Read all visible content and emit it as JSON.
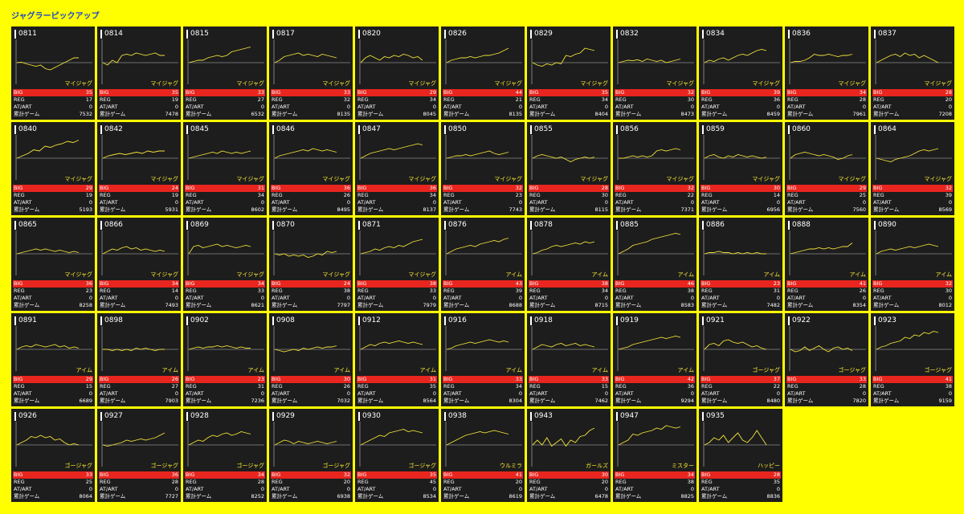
{
  "title": "ジャグラーピックアップ",
  "colors": {
    "page_background": "#ffff00",
    "title": "#1f46c8",
    "card_background": "#1d1d1d",
    "big_row": "#e8251f",
    "trend_line": "#f2e33a",
    "baseline": "#8a8a8a",
    "type_label": "#ffee33"
  },
  "stat_labels": {
    "big": "BIG",
    "reg": "REG",
    "at": "AT/ART",
    "total": "累計ゲーム"
  },
  "cards": [
    {
      "id": "0811",
      "type": "マイジャグ",
      "big": 35,
      "reg": 17,
      "at": 0,
      "total": 7532,
      "trend": [
        0,
        0.02,
        -0.05,
        -0.1,
        -0.15,
        -0.1,
        -0.25,
        -0.3,
        -0.2,
        -0.1,
        0,
        0.1,
        0.2,
        0.2
      ]
    },
    {
      "id": "0814",
      "type": "マイジャグ",
      "big": 35,
      "reg": 19,
      "at": 0,
      "total": 7478,
      "trend": [
        0,
        -0.1,
        0.1,
        0,
        0.3,
        0.35,
        0.3,
        0.4,
        0.35,
        0.3,
        0.35,
        0.4,
        0.3,
        0.3
      ]
    },
    {
      "id": "0815",
      "type": "マイジャグ",
      "big": 33,
      "reg": 27,
      "at": 0,
      "total": 6532,
      "trend": [
        0,
        0.05,
        0.1,
        0.1,
        0.2,
        0.25,
        0.3,
        0.25,
        0.3,
        0.45,
        0.5,
        0.55,
        0.6,
        0.65
      ]
    },
    {
      "id": "0817",
      "type": "マイジャグ",
      "big": 33,
      "reg": 32,
      "at": 0,
      "total": 8135,
      "trend": [
        0,
        0.1,
        0.25,
        0.3,
        0.35,
        0.4,
        0.3,
        0.35,
        0.3,
        0.25,
        0.35,
        0.3,
        0.25,
        0.2
      ]
    },
    {
      "id": "0820",
      "type": "マイジャグ",
      "big": 29,
      "reg": 34,
      "at": 0,
      "total": 8045,
      "trend": [
        0,
        0.2,
        0.3,
        0.2,
        0.1,
        0.25,
        0.2,
        0.3,
        0.25,
        0.35,
        0.3,
        0.2,
        0.25,
        0.1
      ]
    },
    {
      "id": "0826",
      "type": "マイジャグ",
      "big": 44,
      "reg": 21,
      "at": 0,
      "total": 8135,
      "trend": [
        0,
        0.1,
        0.15,
        0.2,
        0.2,
        0.25,
        0.2,
        0.25,
        0.3,
        0.3,
        0.35,
        0.4,
        0.5,
        0.6
      ]
    },
    {
      "id": "0829",
      "type": "マイジャグ",
      "big": 35,
      "reg": 34,
      "at": 0,
      "total": 8404,
      "trend": [
        0,
        -0.1,
        -0.15,
        -0.05,
        -0.1,
        0,
        -0.05,
        0.3,
        0.25,
        0.35,
        0.4,
        0.6,
        0.55,
        0.5
      ]
    },
    {
      "id": "0832",
      "type": "マイジャグ",
      "big": 32,
      "reg": 30,
      "at": 0,
      "total": 8473,
      "trend": [
        0,
        0.05,
        0.1,
        0.08,
        0.12,
        0.05,
        0.15,
        0.1,
        0.05,
        0.1,
        0,
        0.05,
        0.1,
        0.15
      ]
    },
    {
      "id": "0834",
      "type": "マイジャグ",
      "big": 39,
      "reg": 36,
      "at": 0,
      "total": 8459,
      "trend": [
        0,
        0.1,
        0.05,
        0.15,
        0.2,
        0.1,
        0.2,
        0.3,
        0.35,
        0.3,
        0.4,
        0.5,
        0.55,
        0.5
      ]
    },
    {
      "id": "0836",
      "type": "マイジャグ",
      "big": 34,
      "reg": 28,
      "at": 0,
      "total": 7961,
      "trend": [
        0,
        0.05,
        0.05,
        0.1,
        0.2,
        0.35,
        0.3,
        0.3,
        0.35,
        0.3,
        0.25,
        0.3,
        0.3,
        0.35
      ]
    },
    {
      "id": "0837",
      "type": "マイジャグ",
      "big": 28,
      "reg": 20,
      "at": 0,
      "total": 7208,
      "trend": [
        0,
        0.1,
        0.2,
        0.3,
        0.35,
        0.25,
        0.4,
        0.3,
        0.35,
        0.2,
        0.3,
        0.2,
        0.1,
        0
      ]
    },
    {
      "id": "0840",
      "type": "マイジャグ",
      "big": 29,
      "reg": 19,
      "at": 0,
      "total": 5193,
      "trend": [
        0,
        0.1,
        0.2,
        0.35,
        0.3,
        0.5,
        0.45,
        0.55,
        0.6,
        0.7,
        0.65,
        0.75
      ]
    },
    {
      "id": "0842",
      "type": "マイジャグ",
      "big": 24,
      "reg": 19,
      "at": 0,
      "total": 5931,
      "trend": [
        0,
        0.1,
        0.15,
        0.2,
        0.15,
        0.2,
        0.25,
        0.2,
        0.3,
        0.25,
        0.3,
        0.3
      ]
    },
    {
      "id": "0845",
      "type": "マイジャグ",
      "big": 31,
      "reg": 34,
      "at": 0,
      "total": 8602,
      "trend": [
        0,
        0.05,
        0.1,
        0.15,
        0.2,
        0.25,
        0.2,
        0.3,
        0.25,
        0.2,
        0.25,
        0.2,
        0.25,
        0.3
      ]
    },
    {
      "id": "0846",
      "type": "マイジャグ",
      "big": 36,
      "reg": 26,
      "at": 0,
      "total": 8495,
      "trend": [
        0,
        0.1,
        0.15,
        0.2,
        0.25,
        0.3,
        0.35,
        0.3,
        0.4,
        0.35,
        0.3,
        0.35,
        0.3,
        0.25
      ]
    },
    {
      "id": "0847",
      "type": "マイジャグ",
      "big": 36,
      "reg": 34,
      "at": 0,
      "total": 8137,
      "trend": [
        0,
        0.1,
        0.2,
        0.25,
        0.3,
        0.35,
        0.4,
        0.35,
        0.4,
        0.45,
        0.5,
        0.55,
        0.6,
        0.55
      ]
    },
    {
      "id": "0850",
      "type": "マイジャグ",
      "big": 32,
      "reg": 23,
      "at": 0,
      "total": 7743,
      "trend": [
        0,
        0.05,
        0.1,
        0.1,
        0.15,
        0.1,
        0.15,
        0.2,
        0.25,
        0.3,
        0.2,
        0.15,
        0.2,
        0.25
      ]
    },
    {
      "id": "0855",
      "type": "マイジャグ",
      "big": 28,
      "reg": 30,
      "at": 0,
      "total": 8115,
      "trend": [
        0,
        0.1,
        0.15,
        0.1,
        0.05,
        0,
        0.05,
        -0.05,
        -0.15,
        -0.05,
        0,
        0.05,
        0,
        0.05
      ]
    },
    {
      "id": "0856",
      "type": "マイジャグ",
      "big": 32,
      "reg": 22,
      "at": 0,
      "total": 7371,
      "trend": [
        0,
        0,
        0.05,
        0.1,
        0.05,
        0.1,
        0.05,
        0.1,
        0.3,
        0.35,
        0.3,
        0.35,
        0.4,
        0.35
      ]
    },
    {
      "id": "0859",
      "type": "マイジャグ",
      "big": 30,
      "reg": 14,
      "at": 0,
      "total": 6956,
      "trend": [
        0,
        0.1,
        0.15,
        0.05,
        0,
        0.1,
        0.05,
        0.15,
        0.1,
        0.05,
        0.1,
        0.05,
        0,
        0.05
      ]
    },
    {
      "id": "0860",
      "type": "マイジャグ",
      "big": 29,
      "reg": 25,
      "at": 0,
      "total": 7560,
      "trend": [
        0,
        0.15,
        0.2,
        0.25,
        0.2,
        0.15,
        0.1,
        0.15,
        0.1,
        0.05,
        -0.05,
        0,
        0.1,
        0.15
      ]
    },
    {
      "id": "0864",
      "type": "マイジャグ",
      "big": 32,
      "reg": 39,
      "at": 0,
      "total": 8569,
      "trend": [
        0,
        -0.05,
        -0.1,
        -0.15,
        -0.05,
        0,
        0.05,
        0.1,
        0.2,
        0.3,
        0.35,
        0.3,
        0.35,
        0.4
      ]
    },
    {
      "id": "0865",
      "type": "マイジャグ",
      "big": 36,
      "reg": 23,
      "at": 0,
      "total": 8258,
      "trend": [
        0,
        0.05,
        0.1,
        0.15,
        0.2,
        0.15,
        0.2,
        0.15,
        0.1,
        0.15,
        0.1,
        0.05,
        0.1,
        0.05
      ]
    },
    {
      "id": "0866",
      "type": "マイジャグ",
      "big": 34,
      "reg": 14,
      "at": 0,
      "total": 7493,
      "trend": [
        0,
        0.1,
        0.2,
        0.15,
        0.25,
        0.3,
        0.2,
        0.25,
        0.15,
        0.2,
        0.15,
        0.1,
        0.15,
        0.1
      ]
    },
    {
      "id": "0869",
      "type": "マイジャグ",
      "big": 34,
      "reg": 33,
      "at": 0,
      "total": 8621,
      "trend": [
        0,
        0.3,
        0.35,
        0.25,
        0.3,
        0.35,
        0.4,
        0.3,
        0.35,
        0.3,
        0.25,
        0.3,
        0.35,
        0.3
      ]
    },
    {
      "id": "0870",
      "type": "マイジャグ",
      "big": 24,
      "reg": 38,
      "at": 0,
      "total": 7797,
      "trend": [
        0,
        -0.05,
        0,
        -0.1,
        -0.05,
        -0.1,
        -0.05,
        -0.15,
        -0.1,
        0,
        -0.05,
        0.1,
        0.05,
        0.1
      ]
    },
    {
      "id": "0871",
      "type": "マイジャグ",
      "big": 38,
      "reg": 33,
      "at": 0,
      "total": 7979,
      "trend": [
        0,
        0.05,
        0.1,
        0.2,
        0.15,
        0.25,
        0.3,
        0.25,
        0.35,
        0.3,
        0.4,
        0.5,
        0.55,
        0.6
      ]
    },
    {
      "id": "0876",
      "type": "アイム",
      "big": 43,
      "reg": 39,
      "at": 0,
      "total": 8688,
      "trend": [
        0,
        0.1,
        0.2,
        0.25,
        0.3,
        0.35,
        0.3,
        0.4,
        0.45,
        0.5,
        0.55,
        0.5,
        0.6,
        0.65
      ]
    },
    {
      "id": "0878",
      "type": "アイム",
      "big": 38,
      "reg": 34,
      "at": 0,
      "total": 8715,
      "trend": [
        0,
        0.05,
        0.15,
        0.2,
        0.3,
        0.35,
        0.3,
        0.35,
        0.4,
        0.45,
        0.4,
        0.5,
        0.45,
        0.5
      ]
    },
    {
      "id": "0885",
      "type": "アイム",
      "big": 46,
      "reg": 38,
      "at": 0,
      "total": 8583,
      "trend": [
        0,
        0.1,
        0.2,
        0.35,
        0.4,
        0.45,
        0.5,
        0.6,
        0.65,
        0.7,
        0.75,
        0.8,
        0.85,
        0.8
      ]
    },
    {
      "id": "0886",
      "type": "アイム",
      "big": 23,
      "reg": 31,
      "at": 0,
      "total": 7482,
      "trend": [
        0,
        0.05,
        0.05,
        0.1,
        0.05,
        0.05,
        0,
        0.05,
        0,
        0.05,
        0,
        0.05,
        0,
        0
      ]
    },
    {
      "id": "0888",
      "type": "アイム",
      "big": 41,
      "reg": 26,
      "at": 0,
      "total": 8354,
      "trend": [
        0,
        0.05,
        0.1,
        0.15,
        0.2,
        0.2,
        0.25,
        0.2,
        0.25,
        0.2,
        0.25,
        0.3,
        0.3,
        0.45
      ]
    },
    {
      "id": "0890",
      "type": "アイム",
      "big": 32,
      "reg": 30,
      "at": 0,
      "total": 8012,
      "trend": [
        0,
        0.1,
        0.15,
        0.2,
        0.15,
        0.2,
        0.25,
        0.3,
        0.25,
        0.3,
        0.35,
        0.4,
        0.35,
        0.3
      ]
    },
    {
      "id": "0891",
      "type": "アイム",
      "big": 29,
      "reg": 15,
      "at": 0,
      "total": 6689,
      "trend": [
        0,
        0.1,
        0.15,
        0.1,
        0.2,
        0.15,
        0.1,
        0.15,
        0.2,
        0.1,
        0.15,
        0.05,
        0.1,
        0.05
      ]
    },
    {
      "id": "0898",
      "type": "アイム",
      "big": 26,
      "reg": 27,
      "at": 0,
      "total": 7903,
      "trend": [
        0,
        0,
        -0.05,
        0,
        -0.05,
        0,
        -0.05,
        0.05,
        0,
        0.05,
        0,
        -0.05,
        0,
        0
      ]
    },
    {
      "id": "0902",
      "type": "アイム",
      "big": 23,
      "reg": 31,
      "at": 0,
      "total": 7236,
      "trend": [
        0,
        0.05,
        0.1,
        0.05,
        0.1,
        0.1,
        0.15,
        0.1,
        0.15,
        0.1,
        0.05,
        0.1,
        0.05,
        0.05
      ]
    },
    {
      "id": "0908",
      "type": "アイム",
      "big": 30,
      "reg": 26,
      "at": 0,
      "total": 7032,
      "trend": [
        0,
        -0.05,
        -0.1,
        -0.05,
        0,
        -0.05,
        0.05,
        0,
        0.05,
        0.1,
        0.05,
        0.1,
        0.1,
        0.15
      ]
    },
    {
      "id": "0912",
      "type": "アイム",
      "big": 31,
      "reg": 35,
      "at": 0,
      "total": 8564,
      "trend": [
        0,
        0.1,
        0.2,
        0.15,
        0.25,
        0.3,
        0.25,
        0.3,
        0.35,
        0.3,
        0.25,
        0.3,
        0.25,
        0.2
      ]
    },
    {
      "id": "0916",
      "type": "アイム",
      "big": 33,
      "reg": 34,
      "at": 0,
      "total": 8304,
      "trend": [
        0,
        0.05,
        0.15,
        0.2,
        0.25,
        0.3,
        0.25,
        0.3,
        0.35,
        0.4,
        0.35,
        0.3,
        0.35,
        0.3
      ]
    },
    {
      "id": "0918",
      "type": "アイム",
      "big": 33,
      "reg": 15,
      "at": 0,
      "total": 7462,
      "trend": [
        0,
        0.1,
        0.2,
        0.15,
        0.1,
        0.2,
        0.25,
        0.15,
        0.2,
        0.25,
        0.15,
        0.2,
        0.15,
        0.1
      ]
    },
    {
      "id": "0919",
      "type": "アイム",
      "big": 42,
      "reg": 36,
      "at": 0,
      "total": 9294,
      "trend": [
        0,
        0.05,
        0.1,
        0.2,
        0.25,
        0.3,
        0.35,
        0.4,
        0.45,
        0.5,
        0.45,
        0.5,
        0.55,
        0.5
      ]
    },
    {
      "id": "0921",
      "type": "ゴージャグ",
      "big": 37,
      "reg": 22,
      "at": 0,
      "total": 8480,
      "trend": [
        0,
        0.2,
        0.25,
        0.15,
        0.35,
        0.4,
        0.3,
        0.25,
        0.3,
        0.2,
        0.1,
        0.15,
        0.05,
        0
      ]
    },
    {
      "id": "0922",
      "type": "ゴージャグ",
      "big": 33,
      "reg": 28,
      "at": 0,
      "total": 7820,
      "trend": [
        0,
        -0.1,
        -0.05,
        0.1,
        -0.05,
        0.05,
        0.15,
        0,
        -0.1,
        0.05,
        0.1,
        0,
        0.05,
        -0.05
      ]
    },
    {
      "id": "0923",
      "type": "ゴージャグ",
      "big": 41,
      "reg": 38,
      "at": 0,
      "total": 9159,
      "trend": [
        0,
        0.1,
        0.15,
        0.25,
        0.3,
        0.35,
        0.5,
        0.45,
        0.6,
        0.55,
        0.7,
        0.65,
        0.75,
        0.7
      ]
    },
    {
      "id": "0926",
      "type": "ゴージャグ",
      "big": 33,
      "reg": 25,
      "at": 0,
      "total": 8064,
      "trend": [
        0,
        0.1,
        0.2,
        0.35,
        0.3,
        0.4,
        0.3,
        0.35,
        0.2,
        0.25,
        0.1,
        0,
        0.05,
        0
      ]
    },
    {
      "id": "0927",
      "type": "ゴージャグ",
      "big": 36,
      "reg": 28,
      "at": 0,
      "total": 7727,
      "trend": [
        0,
        -0.05,
        0,
        0.05,
        0.1,
        0.2,
        0.15,
        0.2,
        0.25,
        0.2,
        0.25,
        0.3,
        0.4,
        0.5
      ]
    },
    {
      "id": "0928",
      "type": "ゴージャグ",
      "big": 34,
      "reg": 28,
      "at": 0,
      "total": 8252,
      "trend": [
        0,
        0.1,
        0.2,
        0.15,
        0.3,
        0.4,
        0.35,
        0.45,
        0.5,
        0.4,
        0.45,
        0.55,
        0.5,
        0.45
      ]
    },
    {
      "id": "0929",
      "type": "ゴージャグ",
      "big": 32,
      "reg": 20,
      "at": 0,
      "total": 6938,
      "trend": [
        0,
        0.1,
        0.2,
        0.15,
        0.05,
        0.15,
        0.1,
        0.05,
        0.1,
        0.15,
        0.1,
        0.05,
        0.1,
        0.15
      ]
    },
    {
      "id": "0930",
      "type": "ゴージャグ",
      "big": 35,
      "reg": 45,
      "at": 0,
      "total": 8534,
      "trend": [
        0,
        0.1,
        0.2,
        0.3,
        0.4,
        0.35,
        0.5,
        0.55,
        0.6,
        0.65,
        0.55,
        0.6,
        0.55,
        0.5
      ]
    },
    {
      "id": "0938",
      "type": "ウルミラ",
      "big": 41,
      "reg": 20,
      "at": 0,
      "total": 8619,
      "trend": [
        0,
        0.1,
        0.2,
        0.3,
        0.4,
        0.45,
        0.5,
        0.55,
        0.5,
        0.55,
        0.6,
        0.55,
        0.5,
        0.45
      ]
    },
    {
      "id": "0943",
      "type": "ガールズ",
      "big": 30,
      "reg": 20,
      "at": 0,
      "total": 6478,
      "trend": [
        0,
        0.2,
        0,
        0.3,
        -0.05,
        0.1,
        0.25,
        -0.05,
        0.2,
        0.1,
        0.35,
        0.4,
        0.6,
        0.7
      ]
    },
    {
      "id": "0947",
      "type": "ミスター",
      "big": 34,
      "reg": 38,
      "at": 0,
      "total": 8825,
      "trend": [
        0,
        0.1,
        0.2,
        0.45,
        0.4,
        0.5,
        0.55,
        0.6,
        0.7,
        0.65,
        0.8,
        0.75,
        0.7,
        0.75
      ]
    },
    {
      "id": "0935",
      "type": "ハッピー",
      "big": 28,
      "reg": 35,
      "at": 0,
      "total": 8836,
      "trend": [
        0,
        0.1,
        0.3,
        0.2,
        0.4,
        0.1,
        0.3,
        0.5,
        0.2,
        0.1,
        0.3,
        0.6,
        0.3,
        0
      ]
    }
  ]
}
